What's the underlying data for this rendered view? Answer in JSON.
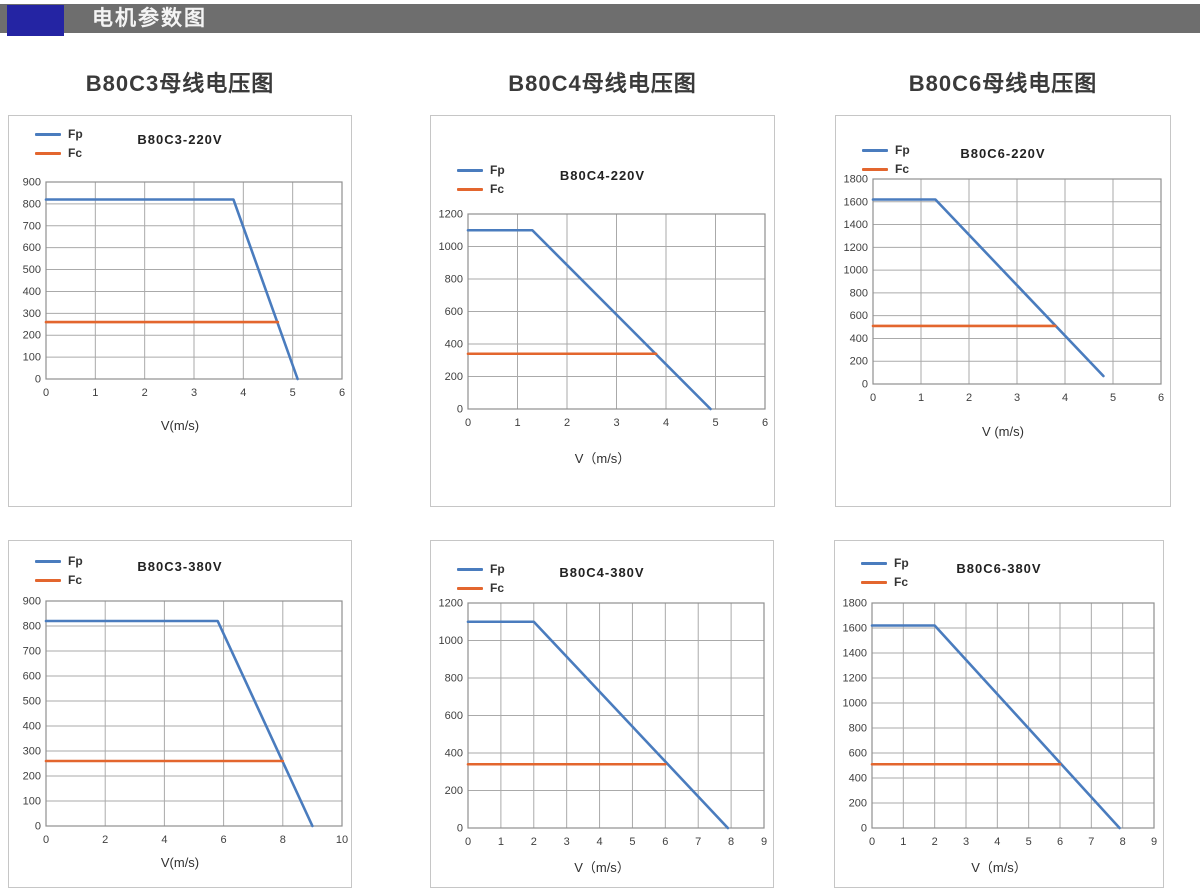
{
  "header": {
    "title": "电机参数图"
  },
  "colors": {
    "accent": "#2424a3",
    "bar": "#6e6e6e",
    "fp": "#4a7cbe",
    "fc": "#e3662e",
    "grid": "#aaaaaa",
    "plot_border": "#8f8f8f"
  },
  "column_titles": [
    "B80C3母线电压图",
    "B80C4母线电压图",
    "B80C6母线电压图"
  ],
  "chart_data": [
    {
      "type": "line",
      "title": "B80C3-220V",
      "xlabel": "V(m/s)",
      "xlim": [
        0,
        6
      ],
      "xstep": 1,
      "ylim": [
        0,
        900
      ],
      "ystep": 100,
      "grid": true,
      "legend_position": "top-left",
      "series": [
        {
          "name": "Fp",
          "color_key": "fp",
          "points": [
            [
              0,
              820
            ],
            [
              3.8,
              820
            ],
            [
              5.1,
              0
            ]
          ]
        },
        {
          "name": "Fc",
          "color_key": "fc",
          "points": [
            [
              0,
              260
            ],
            [
              4.7,
              260
            ]
          ]
        }
      ]
    },
    {
      "type": "line",
      "title": "B80C4-220V",
      "xlabel": "V（m/s）",
      "xlim": [
        0,
        6
      ],
      "xstep": 1,
      "ylim": [
        0,
        1200
      ],
      "ystep": 200,
      "grid": true,
      "legend_position": "top-left",
      "series": [
        {
          "name": "Fp",
          "color_key": "fp",
          "points": [
            [
              0,
              1100
            ],
            [
              1.3,
              1100
            ],
            [
              4.9,
              0
            ]
          ]
        },
        {
          "name": "Fc",
          "color_key": "fc",
          "points": [
            [
              0,
              340
            ],
            [
              3.8,
              340
            ]
          ]
        }
      ]
    },
    {
      "type": "line",
      "title": "B80C6-220V",
      "xlabel": "V (m/s)",
      "xlim": [
        0,
        6
      ],
      "xstep": 1,
      "ylim": [
        0,
        1800
      ],
      "ystep": 200,
      "grid": true,
      "legend_position": "top-left",
      "series": [
        {
          "name": "Fp",
          "color_key": "fp",
          "points": [
            [
              0,
              1620
            ],
            [
              1.3,
              1620
            ],
            [
              4.8,
              70
            ]
          ]
        },
        {
          "name": "Fc",
          "color_key": "fc",
          "points": [
            [
              0,
              510
            ],
            [
              3.8,
              510
            ]
          ]
        }
      ]
    },
    {
      "type": "line",
      "title": "B80C3-380V",
      "xlabel": "V(m/s)",
      "xlim": [
        0,
        10
      ],
      "xstep": 2,
      "ylim": [
        0,
        900
      ],
      "ystep": 100,
      "grid": true,
      "legend_position": "top-left",
      "series": [
        {
          "name": "Fp",
          "color_key": "fp",
          "points": [
            [
              0,
              820
            ],
            [
              5.8,
              820
            ],
            [
              9,
              0
            ]
          ]
        },
        {
          "name": "Fc",
          "color_key": "fc",
          "points": [
            [
              0,
              260
            ],
            [
              8,
              260
            ]
          ]
        }
      ]
    },
    {
      "type": "line",
      "title": "B80C4-380V",
      "xlabel": "V（m/s）",
      "xlim": [
        0,
        9
      ],
      "xstep": 1,
      "ylim": [
        0,
        1200
      ],
      "ystep": 200,
      "grid": true,
      "legend_position": "top-left",
      "series": [
        {
          "name": "Fp",
          "color_key": "fp",
          "points": [
            [
              0,
              1100
            ],
            [
              2,
              1100
            ],
            [
              7.9,
              0
            ]
          ]
        },
        {
          "name": "Fc",
          "color_key": "fc",
          "points": [
            [
              0,
              340
            ],
            [
              6,
              340
            ]
          ]
        }
      ]
    },
    {
      "type": "line",
      "title": "B80C6-380V",
      "xlabel": "V（m/s）",
      "xlim": [
        0,
        9
      ],
      "xstep": 1,
      "ylim": [
        0,
        1800
      ],
      "ystep": 200,
      "grid": true,
      "legend_position": "top-left",
      "series": [
        {
          "name": "Fp",
          "color_key": "fp",
          "points": [
            [
              0,
              1620
            ],
            [
              2,
              1620
            ],
            [
              7.9,
              0
            ]
          ]
        },
        {
          "name": "Fc",
          "color_key": "fc",
          "points": [
            [
              0,
              510
            ],
            [
              6,
              510
            ]
          ]
        }
      ]
    }
  ]
}
